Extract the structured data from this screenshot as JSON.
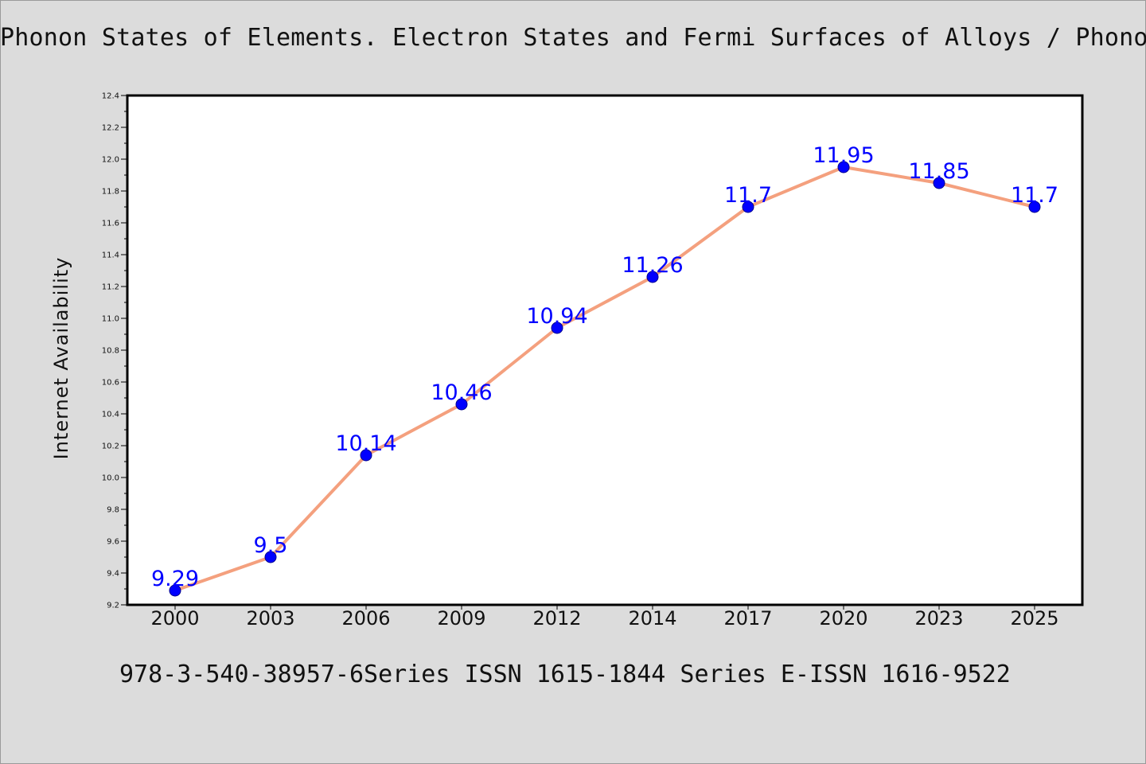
{
  "header": {
    "title": "Phonon States of Elements. Electron States and Fermi Surfaces of Alloys / Phonon States of Elements. Electron States and Fermi Surfaces of Alloys"
  },
  "footer": {
    "subtitle": "978-3-540-38957-6Series ISSN 1615-1844 Series E-ISSN 1616-9522"
  },
  "colors": {
    "line": "#f4a07e",
    "marker": "#0000ff",
    "label": "#0000ff",
    "plot_bg": "#ffffff",
    "page_bg": "#dcdcdc"
  },
  "chart_data": {
    "type": "line",
    "ylabel": "Internet Availability",
    "xlabel": "",
    "categories": [
      "2000",
      "2003",
      "2006",
      "2009",
      "2012",
      "2014",
      "2017",
      "2020",
      "2023",
      "2025"
    ],
    "values": [
      9.29,
      9.5,
      10.14,
      10.46,
      10.94,
      11.26,
      11.7,
      11.95,
      11.85,
      11.7
    ],
    "data_labels": [
      "9.29",
      "9.5",
      "10.14",
      "10.46",
      "10.94",
      "11.26",
      "11.7",
      "11.95",
      "11.85",
      "11.7"
    ],
    "ylim": [
      9.2,
      12.4
    ],
    "yticks": [
      "9.2",
      "9.4",
      "9.6",
      "9.8",
      "10.0",
      "10.2",
      "10.4",
      "10.6",
      "10.8",
      "11.0",
      "11.2",
      "11.4",
      "11.6",
      "11.8",
      "12.0",
      "12.2",
      "12.4"
    ],
    "grid": false,
    "legend": "none"
  }
}
